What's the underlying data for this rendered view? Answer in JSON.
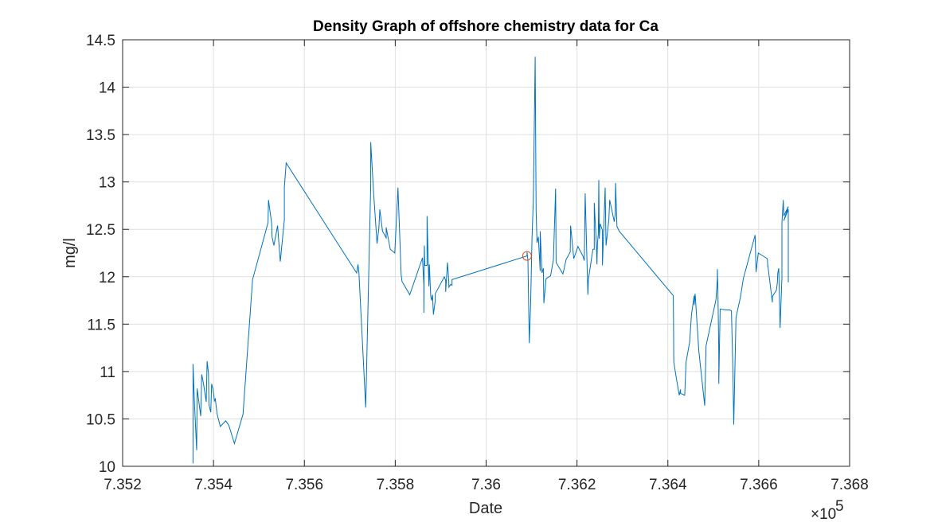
{
  "chart_data": {
    "type": "line",
    "title": "Density Graph of offshore chemistry data for Ca",
    "xlabel": "Date",
    "ylabel": "mg/l",
    "x_exponent_label": "×10",
    "x_exponent_power": "5",
    "xlim": [
      735200,
      736800
    ],
    "ylim": [
      10,
      14.5
    ],
    "x_ticks": [
      735200,
      735400,
      735600,
      735800,
      736000,
      736200,
      736400,
      736600,
      736800
    ],
    "x_tick_labels": [
      "7.352",
      "7.354",
      "7.356",
      "7.358",
      "7.36",
      "7.362",
      "7.364",
      "7.366",
      "7.368"
    ],
    "y_ticks": [
      10,
      10.5,
      11,
      11.5,
      12,
      12.5,
      13,
      13.5,
      14,
      14.5
    ],
    "y_tick_labels": [
      "10",
      "10.5",
      "11",
      "11.5",
      "12",
      "12.5",
      "13",
      "13.5",
      "14",
      "14.5"
    ],
    "grid": true,
    "line_color": "#0072BD",
    "marker_color": "#D95319",
    "highlight_point": {
      "x": 736090,
      "y": 12.22
    },
    "series": [
      {
        "x": [
          735355,
          735355,
          735358,
          735363,
          735364,
          735372,
          735374,
          735378,
          735384,
          735386,
          735389,
          735390,
          735394,
          735396,
          735399,
          735402,
          735404,
          735408,
          735415,
          735427,
          735434,
          735446,
          735465,
          735486,
          735520,
          735521,
          735528,
          735529,
          735533,
          735541,
          735547,
          735556,
          735556,
          735560,
          735715,
          735718,
          735720,
          735735,
          735746,
          735746,
          735752,
          735760,
          735764,
          735766,
          735772,
          735780,
          735780,
          735789,
          735799,
          735806,
          735813,
          735815,
          735832,
          735860,
          735863,
          735863,
          735864,
          735865,
          735870,
          735870,
          735874,
          735875,
          735878,
          735880,
          735882,
          735884,
          735888,
          735888,
          735908,
          735911,
          735911,
          735915,
          735918,
          735918,
          735922,
          735925,
          735925,
          736090,
          736090,
          736092,
          736095,
          736098,
          736101,
          736104,
          736108,
          736110,
          736112,
          736115,
          736119,
          736119,
          736123,
          736126,
          736127,
          736132,
          736142,
          736148,
          736153,
          736154,
          736169,
          736171,
          736176,
          736185,
          736186,
          736193,
          736202,
          736204,
          736213,
          736216,
          736218,
          736224,
          736225,
          736235,
          736238,
          736238,
          736243,
          736244,
          736245,
          736247,
          736248,
          736249,
          736251,
          736256,
          736256,
          736262,
          736264,
          736270,
          736272,
          736282,
          736284,
          736285,
          736288,
          736293,
          736412,
          736413,
          736418,
          736425,
          736428,
          736428,
          736437,
          736440,
          736448,
          736452,
          736458,
          736458,
          736460,
          736468,
          736481,
          736484,
          736506,
          736509,
          736509,
          736510,
          736512,
          736512,
          736515,
          736528,
          736536,
          736540,
          736543,
          736545,
          736550,
          736560,
          736566,
          736592,
          736594,
          736599,
          736619,
          736620,
          736620,
          736630,
          736630,
          736639,
          736641,
          736642,
          736644,
          736647,
          736650,
          736651,
          736651,
          736654,
          736655,
          736665,
          736655,
          736665,
          736665
        ],
        "y": [
          10.03,
          11.08,
          10.67,
          10.17,
          10.82,
          10.53,
          10.97,
          10.87,
          10.68,
          11.11,
          10.98,
          10.65,
          10.57,
          10.87,
          10.81,
          10.69,
          10.71,
          10.55,
          10.42,
          10.48,
          10.43,
          10.24,
          10.55,
          11.97,
          12.57,
          12.81,
          12.56,
          12.42,
          12.33,
          12.54,
          12.16,
          12.6,
          12.94,
          13.2,
          12.04,
          12.13,
          12.05,
          10.62,
          12.97,
          13.42,
          12.91,
          12.35,
          12.51,
          12.71,
          12.48,
          12.41,
          12.52,
          12.29,
          12.25,
          12.94,
          12.02,
          11.95,
          11.81,
          12.2,
          11.91,
          11.62,
          12.33,
          12.12,
          12.12,
          12.64,
          11.9,
          12.13,
          11.8,
          11.75,
          11.81,
          11.6,
          11.75,
          11.82,
          12.0,
          11.96,
          11.84,
          12.15,
          11.94,
          11.89,
          11.92,
          11.91,
          11.97,
          12.22,
          12.26,
          12.17,
          11.3,
          11.71,
          12.4,
          12.81,
          14.32,
          12.7,
          12.36,
          12.42,
          12.06,
          12.48,
          12.04,
          12.09,
          11.72,
          11.98,
          12.01,
          12.18,
          12.93,
          12.15,
          12.03,
          12.07,
          12.18,
          12.26,
          12.54,
          12.19,
          12.32,
          12.3,
          12.22,
          12.17,
          12.88,
          11.81,
          11.97,
          12.29,
          12.29,
          12.78,
          12.3,
          12.13,
          12.35,
          12.45,
          13.02,
          12.4,
          12.56,
          12.49,
          12.12,
          12.94,
          12.33,
          12.6,
          12.81,
          12.58,
          12.66,
          12.99,
          12.53,
          12.48,
          11.8,
          11.1,
          10.95,
          10.75,
          10.81,
          10.77,
          10.75,
          11.1,
          11.31,
          11.6,
          11.8,
          11.7,
          11.82,
          11.22,
          10.64,
          11.27,
          11.76,
          11.98,
          12.08,
          11.9,
          11.21,
          10.87,
          11.66,
          11.65,
          11.65,
          11.64,
          11.05,
          10.44,
          11.57,
          11.79,
          11.98,
          12.44,
          12.05,
          12.25,
          12.19,
          12.1,
          12.12,
          11.73,
          11.79,
          11.86,
          11.94,
          12.04,
          12.09,
          11.46,
          11.86,
          11.99,
          12.57,
          12.81,
          12.64,
          12.74,
          12.59,
          12.71,
          11.94
        ]
      }
    ]
  }
}
